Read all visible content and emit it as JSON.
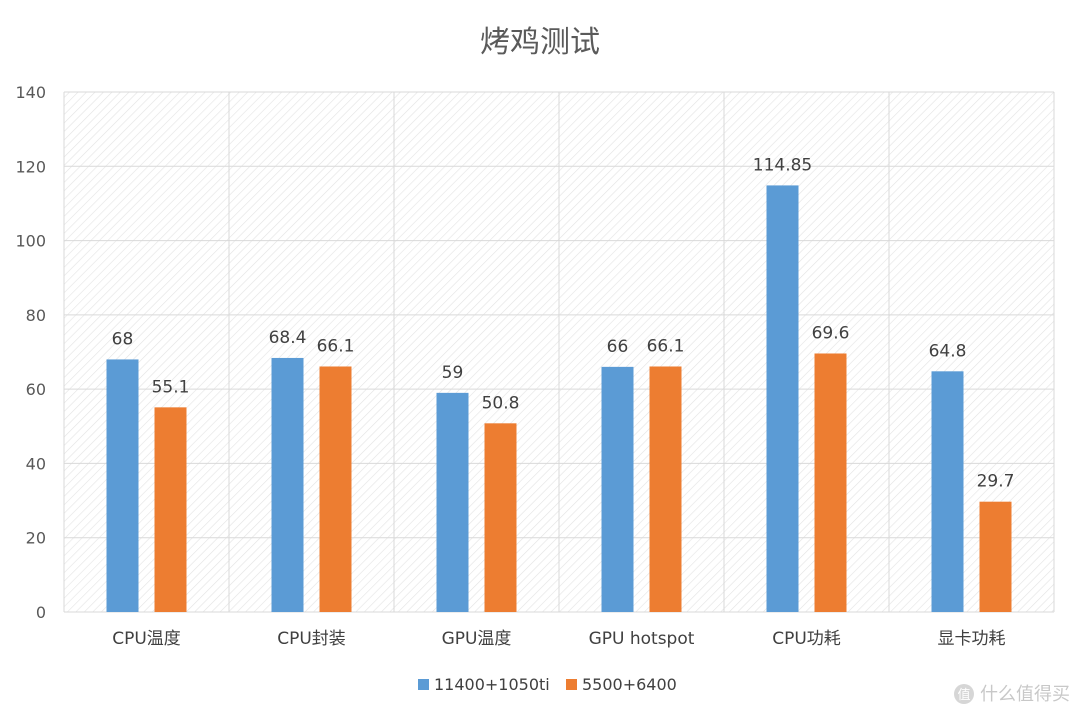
{
  "chart_data": {
    "type": "bar",
    "title": "烤鸡测试",
    "categories": [
      "CPU温度",
      "CPU封装",
      "GPU温度",
      "GPU hotspot",
      "CPU功耗",
      "显卡功耗"
    ],
    "series": [
      {
        "name": "11400+1050ti",
        "color": "#5b9bd5",
        "values": [
          68,
          68.4,
          59,
          66,
          114.85,
          64.8
        ]
      },
      {
        "name": "5500+6400",
        "color": "#ed7d31",
        "values": [
          55.1,
          66.1,
          50.8,
          66.1,
          69.6,
          29.7
        ]
      }
    ],
    "data_labels": [
      [
        "68",
        "68.4",
        "59",
        "66",
        "114.85",
        "64.8"
      ],
      [
        "55.1",
        "66.1",
        "50.8",
        "66.1",
        "69.6",
        "29.7"
      ]
    ],
    "ylim": [
      0,
      140
    ],
    "yticks": [
      "0",
      "20",
      "40",
      "60",
      "80",
      "100",
      "120",
      "140"
    ],
    "grid": true,
    "legend_position": "bottom",
    "xlabel": "",
    "ylabel": ""
  },
  "watermark": {
    "icon": "zhi-logo-icon",
    "text": "什么值得买"
  }
}
